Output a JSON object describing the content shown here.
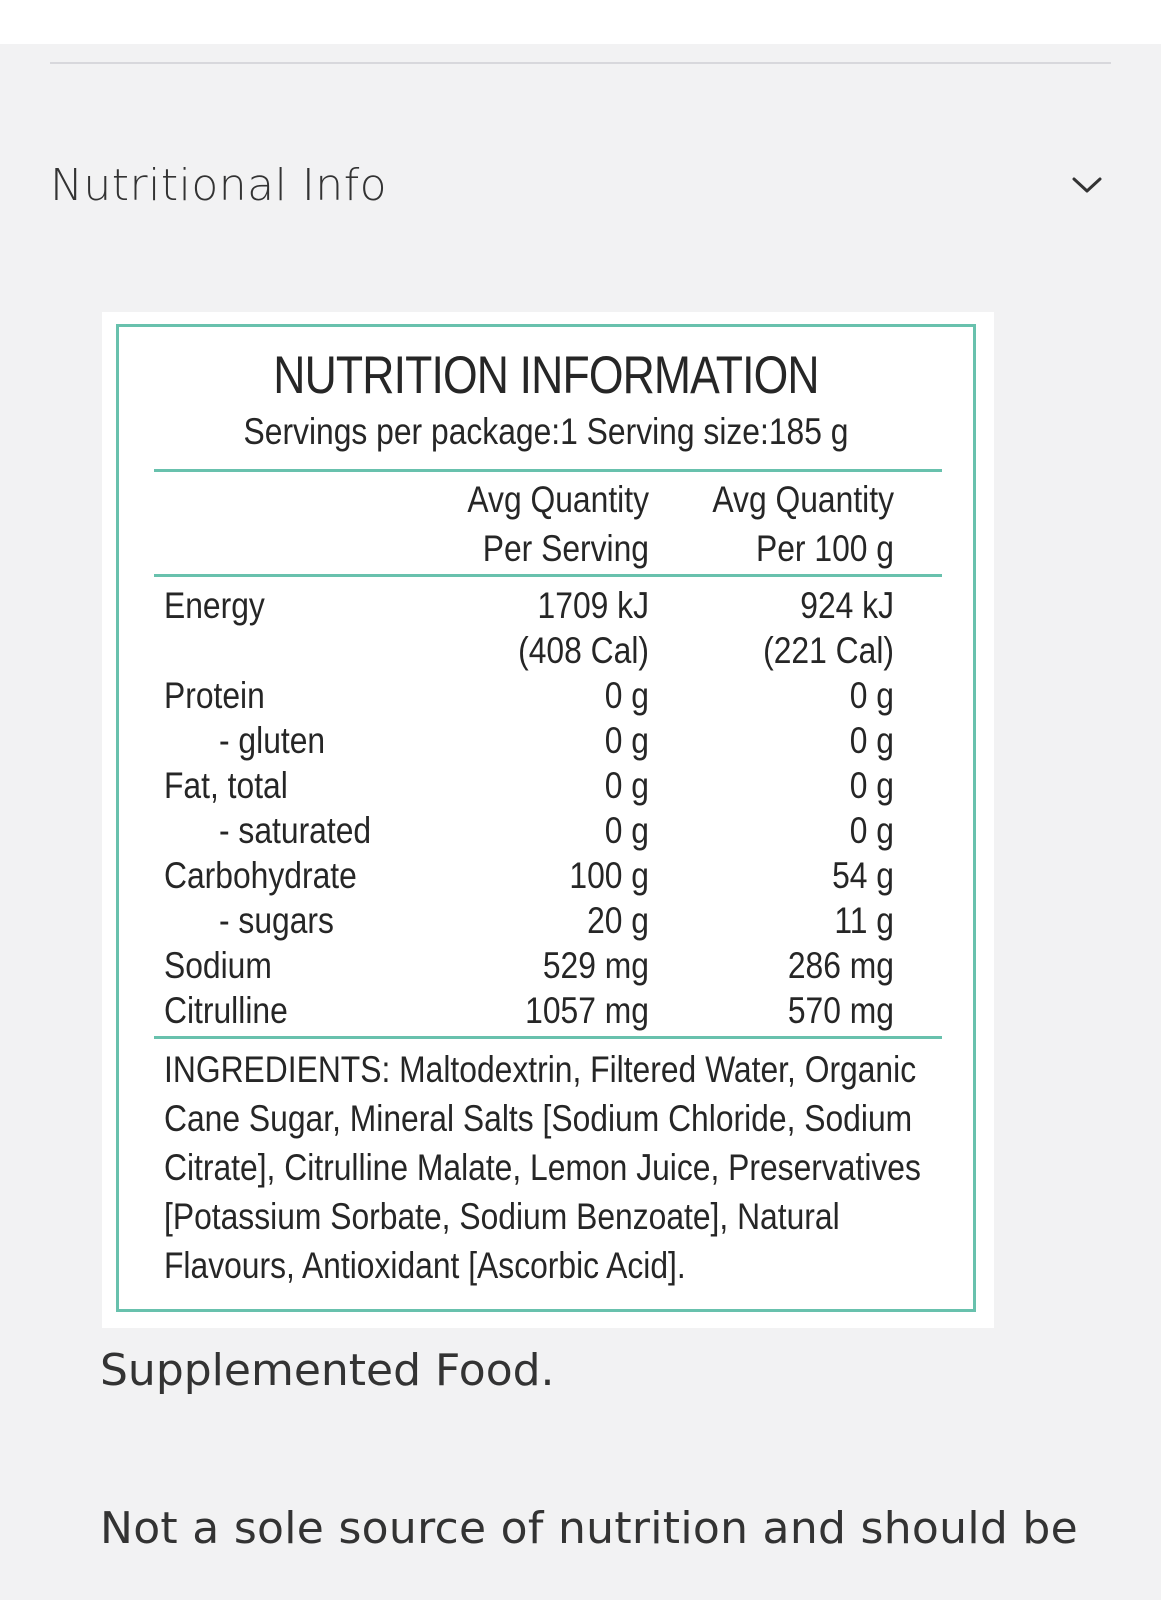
{
  "section": {
    "title": "Nutritional Info",
    "toggle_icon": "chevron-down-icon"
  },
  "label": {
    "title": "NUTRITION INFORMATION",
    "servings": "Servings per package:1 Serving size:185 g",
    "columns": {
      "per_serving_line1": "Avg Quantity",
      "per_serving_line2": "Per Serving",
      "per_100g_line1": "Avg Quantity",
      "per_100g_line2": "Per 100 g"
    },
    "rows": [
      {
        "name": "Energy",
        "per_serving": "1709 kJ",
        "per_100g": "924 kJ"
      },
      {
        "name": "",
        "per_serving": "(408 Cal)",
        "per_100g": "(221 Cal)"
      },
      {
        "name": "Protein",
        "per_serving": "0 g",
        "per_100g": "0 g"
      },
      {
        "name": "- gluten",
        "per_serving": "0 g",
        "per_100g": "0 g"
      },
      {
        "name": "Fat, total",
        "per_serving": "0 g",
        "per_100g": "0 g"
      },
      {
        "name": "- saturated",
        "per_serving": "0 g",
        "per_100g": "0 g"
      },
      {
        "name": "Carbohydrate",
        "per_serving": "100 g",
        "per_100g": "54 g"
      },
      {
        "name": "- sugars",
        "per_serving": "20 g",
        "per_100g": "11 g"
      },
      {
        "name": "Sodium",
        "per_serving": "529 mg",
        "per_100g": "286 mg"
      },
      {
        "name": "Citrulline",
        "per_serving": "1057 mg",
        "per_100g": "570 mg"
      }
    ],
    "ingredients_lines": [
      "INGREDIENTS: Maltodextrin, Filtered Water, Organic",
      "Cane Sugar, Mineral Salts [Sodium Chloride, Sodium",
      "Citrate], Citrulline Malate, Lemon Juice, Preservatives",
      "[Potassium Sorbate, Sodium Benzoate], Natural",
      "Flavours, Antioxidant [Ascorbic Acid]."
    ]
  },
  "notes": {
    "supplemented": "Supplemented Food.",
    "sole_source": "Not a sole source of nutrition and should be"
  },
  "colors": {
    "label_accent": "#68c1ad",
    "page_background": "#f2f2f3"
  }
}
